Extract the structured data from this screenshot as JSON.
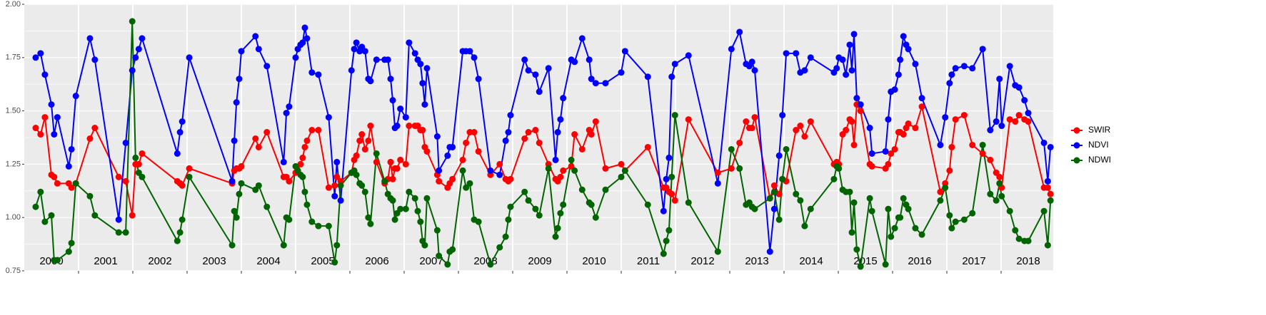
{
  "chart_data": {
    "type": "line",
    "x": [
      2000.21,
      2000.3,
      2000.38,
      2000.5,
      2000.55,
      2000.61,
      2000.82,
      2000.87,
      2000.95,
      2001.21,
      2001.3,
      2001.74,
      2001.87,
      2001.99,
      2002.05,
      2002.11,
      2002.17,
      2002.82,
      2002.87,
      2002.91,
      2003.04,
      2003.83,
      2003.87,
      2003.91,
      2003.96,
      2004.0,
      2004.26,
      2004.32,
      2004.47,
      2004.78,
      2004.83,
      2004.88,
      2005.0,
      2005.04,
      2005.09,
      2005.13,
      2005.17,
      2005.21,
      2005.3,
      2005.42,
      2005.61,
      2005.72,
      2005.76,
      2005.83,
      2006.03,
      2006.08,
      2006.12,
      2006.18,
      2006.22,
      2006.28,
      2006.34,
      2006.38,
      2006.49,
      2006.64,
      2006.7,
      2006.75,
      2006.79,
      2006.83,
      2006.87,
      2006.93,
      2007.03,
      2007.09,
      2007.2,
      2007.25,
      2007.3,
      2007.34,
      2007.38,
      2007.42,
      2007.61,
      2007.64,
      2007.8,
      2007.84,
      2007.89,
      2008.08,
      2008.14,
      2008.21,
      2008.29,
      2008.37,
      2008.59,
      2008.76,
      2008.87,
      2008.92,
      2008.96,
      2009.22,
      2009.29,
      2009.42,
      2009.49,
      2009.66,
      2009.79,
      2009.83,
      2009.88,
      2009.93,
      2010.08,
      2010.14,
      2010.28,
      2010.41,
      2010.45,
      2010.53,
      2010.71,
      2011.0,
      2011.07,
      2011.49,
      2011.78,
      2011.83,
      2011.88,
      2011.93,
      2011.99,
      2012.24,
      2012.78,
      2013.03,
      2013.18,
      2013.3,
      2013.36,
      2013.41,
      2013.46,
      2013.74,
      2013.82,
      2013.91,
      2013.97,
      2014.04,
      2014.22,
      2014.3,
      2014.38,
      2014.49,
      2014.92,
      2014.97,
      2015.01,
      2015.08,
      2015.14,
      2015.21,
      2015.25,
      2015.29,
      2015.34,
      2015.41,
      2015.58,
      2015.62,
      2015.87,
      2015.92,
      2015.97,
      2016.04,
      2016.11,
      2016.14,
      2016.2,
      2016.25,
      2016.29,
      2016.42,
      2016.54,
      2016.88,
      2016.97,
      2017.05,
      2017.09,
      2017.16,
      2017.32,
      2017.47,
      2017.66,
      2017.8,
      2017.91,
      2017.97,
      2018.01,
      2018.16,
      2018.26,
      2018.33,
      2018.43,
      2018.5,
      2018.79,
      2018.86,
      2018.91
    ],
    "series": [
      {
        "name": "SWIR",
        "color": "#ff0000",
        "values": [
          1.42,
          1.39,
          1.47,
          1.2,
          1.19,
          1.16,
          1.16,
          1.14,
          1.16,
          1.37,
          1.42,
          1.19,
          1.17,
          1.01,
          1.25,
          1.25,
          1.3,
          1.17,
          1.16,
          1.15,
          1.23,
          1.16,
          1.22,
          1.23,
          1.23,
          1.24,
          1.37,
          1.33,
          1.4,
          1.19,
          1.19,
          1.17,
          1.21,
          1.22,
          1.25,
          1.28,
          1.33,
          1.36,
          1.41,
          1.41,
          1.14,
          1.15,
          1.19,
          1.17,
          1.21,
          1.27,
          1.29,
          1.36,
          1.39,
          1.32,
          1.36,
          1.43,
          1.26,
          1.16,
          1.18,
          1.26,
          1.18,
          1.23,
          1.23,
          1.27,
          1.25,
          1.43,
          1.43,
          1.43,
          1.41,
          1.41,
          1.33,
          1.31,
          1.2,
          1.17,
          1.14,
          1.16,
          1.18,
          1.27,
          1.35,
          1.4,
          1.4,
          1.31,
          1.2,
          1.25,
          1.18,
          1.17,
          1.18,
          1.37,
          1.4,
          1.41,
          1.35,
          1.25,
          1.18,
          1.17,
          1.19,
          1.22,
          1.24,
          1.39,
          1.32,
          1.41,
          1.39,
          1.45,
          1.23,
          1.25,
          1.22,
          1.33,
          1.14,
          1.14,
          1.12,
          1.11,
          1.08,
          1.46,
          1.21,
          1.23,
          1.35,
          1.45,
          1.42,
          1.42,
          1.47,
          1.09,
          1.15,
          1.11,
          1.18,
          1.17,
          1.41,
          1.43,
          1.38,
          1.45,
          1.25,
          1.26,
          1.25,
          1.39,
          1.41,
          1.46,
          1.45,
          1.34,
          1.53,
          1.5,
          1.25,
          1.24,
          1.23,
          1.25,
          1.3,
          1.32,
          1.4,
          1.4,
          1.39,
          1.42,
          1.44,
          1.42,
          1.52,
          1.12,
          1.16,
          1.22,
          1.33,
          1.46,
          1.48,
          1.34,
          1.3,
          1.27,
          1.21,
          1.19,
          1.14,
          1.46,
          1.45,
          1.48,
          1.46,
          1.45,
          1.14,
          1.14,
          1.11
        ]
      },
      {
        "name": "NDVI",
        "color": "#0000ff",
        "values": [
          1.75,
          1.77,
          1.67,
          1.53,
          1.39,
          1.47,
          1.24,
          1.32,
          1.57,
          1.84,
          1.74,
          0.99,
          1.35,
          1.69,
          1.75,
          1.79,
          1.84,
          1.3,
          1.4,
          1.45,
          1.75,
          1.17,
          1.36,
          1.54,
          1.65,
          1.78,
          1.85,
          1.79,
          1.71,
          1.26,
          1.49,
          1.52,
          1.75,
          1.79,
          1.81,
          1.82,
          1.89,
          1.84,
          1.68,
          1.67,
          1.47,
          1.1,
          1.26,
          1.08,
          1.69,
          1.79,
          1.82,
          1.78,
          1.8,
          1.78,
          1.65,
          1.64,
          1.74,
          1.74,
          1.74,
          1.65,
          1.55,
          1.42,
          1.43,
          1.51,
          1.47,
          1.82,
          1.77,
          1.74,
          1.72,
          1.63,
          1.53,
          1.7,
          1.38,
          1.22,
          1.29,
          1.33,
          1.33,
          1.78,
          1.78,
          1.78,
          1.75,
          1.65,
          1.22,
          1.2,
          1.36,
          1.4,
          1.48,
          1.74,
          1.69,
          1.67,
          1.59,
          1.7,
          1.27,
          1.4,
          1.46,
          1.56,
          1.74,
          1.73,
          1.84,
          1.74,
          1.65,
          1.63,
          1.63,
          1.68,
          1.78,
          1.66,
          1.03,
          1.18,
          1.28,
          1.66,
          1.72,
          1.76,
          1.16,
          1.79,
          1.87,
          1.72,
          1.71,
          1.73,
          1.69,
          0.84,
          1.04,
          1.29,
          1.48,
          1.77,
          1.77,
          1.68,
          1.69,
          1.75,
          1.68,
          1.7,
          1.75,
          1.74,
          1.67,
          1.81,
          1.69,
          1.86,
          1.56,
          1.53,
          1.42,
          1.3,
          1.31,
          1.46,
          1.59,
          1.6,
          1.67,
          1.74,
          1.85,
          1.81,
          1.79,
          1.72,
          1.56,
          1.34,
          1.47,
          1.63,
          1.67,
          1.7,
          1.71,
          1.7,
          1.79,
          1.41,
          1.45,
          1.65,
          1.43,
          1.71,
          1.62,
          1.61,
          1.55,
          1.49,
          1.35,
          1.17,
          1.33
        ]
      },
      {
        "name": "NDWI",
        "color": "#006400",
        "values": [
          1.05,
          1.12,
          0.98,
          1.01,
          0.8,
          0.8,
          0.84,
          0.88,
          1.16,
          1.1,
          1.01,
          0.93,
          0.93,
          1.92,
          1.28,
          1.21,
          1.19,
          0.89,
          0.93,
          0.99,
          1.19,
          0.87,
          1.03,
          1.0,
          1.11,
          1.16,
          1.13,
          1.15,
          1.05,
          0.87,
          1.0,
          0.99,
          1.24,
          1.22,
          1.2,
          1.19,
          1.12,
          1.06,
          0.98,
          0.96,
          0.96,
          0.79,
          0.87,
          1.15,
          1.21,
          1.22,
          1.2,
          1.16,
          1.15,
          1.12,
          1.0,
          0.97,
          1.3,
          1.17,
          1.11,
          1.09,
          1.08,
          0.99,
          1.02,
          1.04,
          1.04,
          1.12,
          1.09,
          1.03,
          0.98,
          0.89,
          0.87,
          1.09,
          0.94,
          0.82,
          0.78,
          0.84,
          0.85,
          1.22,
          1.14,
          1.16,
          0.99,
          0.98,
          0.78,
          0.86,
          0.91,
          0.99,
          1.05,
          1.12,
          1.08,
          1.04,
          1.01,
          1.23,
          0.91,
          0.95,
          1.02,
          1.06,
          1.27,
          1.22,
          1.13,
          1.07,
          1.06,
          1.0,
          1.13,
          1.19,
          1.22,
          1.06,
          0.83,
          0.89,
          0.94,
          1.19,
          1.48,
          1.07,
          0.84,
          1.32,
          1.23,
          1.06,
          1.07,
          1.05,
          1.04,
          1.09,
          1.12,
          0.99,
          1.18,
          1.32,
          1.11,
          1.08,
          0.96,
          1.04,
          1.18,
          1.24,
          1.23,
          1.13,
          1.12,
          1.12,
          0.93,
          1.07,
          0.85,
          0.77,
          1.09,
          1.03,
          0.78,
          1.04,
          0.91,
          0.95,
          1.0,
          1.0,
          1.09,
          1.06,
          1.04,
          0.95,
          0.92,
          1.08,
          1.14,
          1.01,
          0.95,
          0.98,
          0.99,
          1.02,
          1.34,
          1.11,
          1.08,
          1.16,
          1.1,
          1.03,
          0.94,
          0.9,
          0.89,
          0.89,
          1.03,
          0.87,
          1.08
        ]
      }
    ],
    "xlim": [
      2000,
      2018.96
    ],
    "xticks": [
      2001,
      2002,
      2003,
      2004,
      2005,
      2006,
      2007,
      2008,
      2009,
      2010,
      2011,
      2012,
      2013,
      2014,
      2015,
      2016,
      2017,
      2018
    ],
    "year_labels": [
      "2000",
      "2001",
      "2002",
      "2003",
      "2004",
      "2005",
      "2006",
      "2007",
      "2008",
      "2009",
      "2010",
      "2011",
      "2012",
      "2013",
      "2014",
      "2015",
      "2016",
      "2017",
      "2018"
    ],
    "ylim": [
      0.75,
      2.0
    ],
    "yticks": [
      0.75,
      {
        "value": 1.0,
        "label": "1.00"
      },
      1.25,
      {
        "value": 1.5,
        "label": "1.50"
      },
      1.75,
      {
        "value": 2.0,
        "label": "2.00"
      }
    ],
    "minor_yticks": [
      0.875,
      1.125,
      1.375,
      1.625,
      1.875
    ],
    "grid": true,
    "legend": "right"
  }
}
